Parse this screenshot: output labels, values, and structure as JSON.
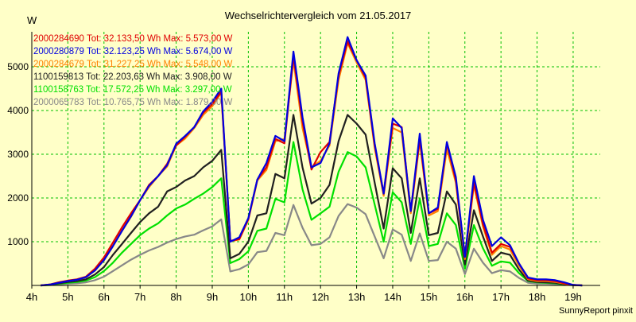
{
  "footer": "SunnyReport pinxit",
  "chart_data": {
    "type": "line",
    "title": "Wechselrichtervergleich vom 21.05.2017",
    "ylabel": "W",
    "xlabel": "",
    "ylim": [
      0,
      5800
    ],
    "yticks": [
      1000,
      2000,
      3000,
      4000,
      5000
    ],
    "xticks": [
      "4h",
      "5h",
      "6h",
      "7h",
      "8h",
      "9h",
      "10h",
      "11h",
      "12h",
      "13h",
      "14h",
      "15h",
      "16h",
      "17h",
      "18h",
      "19h"
    ],
    "grid": true,
    "legend_position": "top-left",
    "x": [
      "4:15",
      "4:30",
      "4:45",
      "5:00",
      "5:15",
      "5:30",
      "5:45",
      "6:00",
      "6:15",
      "6:30",
      "6:45",
      "7:00",
      "7:15",
      "7:30",
      "7:45",
      "8:00",
      "8:15",
      "8:30",
      "8:45",
      "9:00",
      "9:15",
      "9:30",
      "9:45",
      "10:00",
      "10:15",
      "10:30",
      "10:45",
      "11:00",
      "11:15",
      "11:30",
      "11:45",
      "12:00",
      "12:15",
      "12:30",
      "12:45",
      "13:00",
      "13:15",
      "13:30",
      "13:45",
      "14:00",
      "14:15",
      "14:30",
      "14:45",
      "15:00",
      "15:15",
      "15:30",
      "15:45",
      "16:00",
      "16:15",
      "16:30",
      "16:45",
      "17:00",
      "17:15",
      "17:30",
      "17:45",
      "18:00",
      "18:15",
      "18:30",
      "18:45",
      "19:00",
      "19:15"
    ],
    "series": [
      {
        "name": "2000284690 Tot: 32.133,50 Wh Max: 5.573,00 W",
        "color": "#e00000",
        "values": [
          0,
          20,
          70,
          110,
          140,
          200,
          380,
          640,
          980,
          1330,
          1650,
          1950,
          2300,
          2500,
          2780,
          3200,
          3400,
          3620,
          3950,
          4150,
          4430,
          1020,
          1060,
          1520,
          2420,
          2700,
          3350,
          3250,
          5250,
          3750,
          2650,
          3050,
          3280,
          4800,
          5580,
          5150,
          4750,
          3200,
          2100,
          3700,
          3620,
          1700,
          3350,
          1650,
          1750,
          3250,
          2400,
          680,
          2350,
          1400,
          750,
          950,
          880,
          500,
          160,
          120,
          120,
          100,
          50,
          10,
          0
        ]
      },
      {
        "name": "2000280879 Tot: 32.123,25 Wh Max: 5.674,00 W",
        "color": "#0000e0",
        "values": [
          0,
          20,
          60,
          100,
          130,
          190,
          340,
          580,
          900,
          1250,
          1580,
          1950,
          2280,
          2500,
          2750,
          3240,
          3420,
          3620,
          3980,
          4200,
          4500,
          1000,
          1100,
          1540,
          2420,
          2800,
          3420,
          3300,
          5350,
          3850,
          2700,
          2800,
          3250,
          4850,
          5680,
          5150,
          4800,
          3250,
          2100,
          3820,
          3600,
          1700,
          3470,
          1650,
          1780,
          3280,
          2480,
          650,
          2500,
          1500,
          900,
          1100,
          920,
          500,
          180,
          140,
          140,
          120,
          70,
          10,
          0
        ]
      },
      {
        "name": "2000284679 Tot: 31.227,25 Wh Max: 5.548,00 W",
        "color": "#ff8000",
        "values": [
          0,
          20,
          70,
          100,
          130,
          190,
          340,
          580,
          900,
          1250,
          1570,
          1950,
          2250,
          2500,
          2720,
          3200,
          3360,
          3600,
          3900,
          4100,
          4410,
          1010,
          1050,
          1500,
          2400,
          2640,
          3300,
          3350,
          5150,
          3600,
          2700,
          2850,
          3200,
          4700,
          5540,
          5100,
          4700,
          3150,
          2050,
          3600,
          3500,
          1650,
          3300,
          1600,
          1700,
          3120,
          2350,
          600,
          2300,
          1350,
          700,
          900,
          820,
          450,
          140,
          100,
          100,
          80,
          40,
          10,
          0
        ]
      },
      {
        "name": "1100159813 Tot: 22.203,63 Wh Max: 3.908,00 W",
        "color": "#202020",
        "values": [
          0,
          15,
          50,
          80,
          100,
          140,
          250,
          420,
          700,
          950,
          1200,
          1450,
          1650,
          1800,
          2150,
          2250,
          2400,
          2500,
          2700,
          2850,
          3100,
          620,
          720,
          1000,
          1600,
          1650,
          2550,
          2450,
          3900,
          2700,
          1870,
          2000,
          2300,
          3300,
          3900,
          3700,
          3450,
          2350,
          1300,
          2680,
          2450,
          1200,
          2450,
          1150,
          1200,
          2150,
          1850,
          480,
          1720,
          1120,
          560,
          750,
          700,
          360,
          110,
          80,
          70,
          60,
          30,
          5,
          0
        ]
      },
      {
        "name": "1100158763 Tot: 17.572,25 Wh Max: 3.297,00 W",
        "color": "#00e000",
        "values": [
          0,
          10,
          40,
          60,
          80,
          110,
          190,
          330,
          520,
          750,
          950,
          1150,
          1300,
          1420,
          1600,
          1760,
          1850,
          1980,
          2100,
          2250,
          2450,
          510,
          600,
          780,
          1250,
          1300,
          1980,
          1900,
          3280,
          2200,
          1500,
          1650,
          1800,
          2600,
          3050,
          2950,
          2700,
          1850,
          1000,
          2130,
          1900,
          950,
          1980,
          900,
          950,
          1650,
          1380,
          380,
          1380,
          850,
          450,
          550,
          520,
          280,
          100,
          70,
          60,
          50,
          20,
          5,
          0
        ]
      },
      {
        "name": "2000065783 Tot: 10.765,75 Wh Max: 1.879,00 W",
        "color": "#888888",
        "values": [
          0,
          8,
          25,
          40,
          50,
          70,
          120,
          200,
          330,
          460,
          590,
          700,
          800,
          880,
          980,
          1060,
          1120,
          1160,
          1260,
          1350,
          1510,
          320,
          370,
          480,
          760,
          790,
          1200,
          1150,
          1840,
          1320,
          920,
          950,
          1100,
          1590,
          1860,
          1780,
          1630,
          1120,
          620,
          1280,
          1160,
          560,
          1190,
          560,
          580,
          1000,
          840,
          260,
          840,
          520,
          280,
          350,
          320,
          170,
          60,
          40,
          40,
          30,
          15,
          5,
          0
        ]
      }
    ]
  }
}
